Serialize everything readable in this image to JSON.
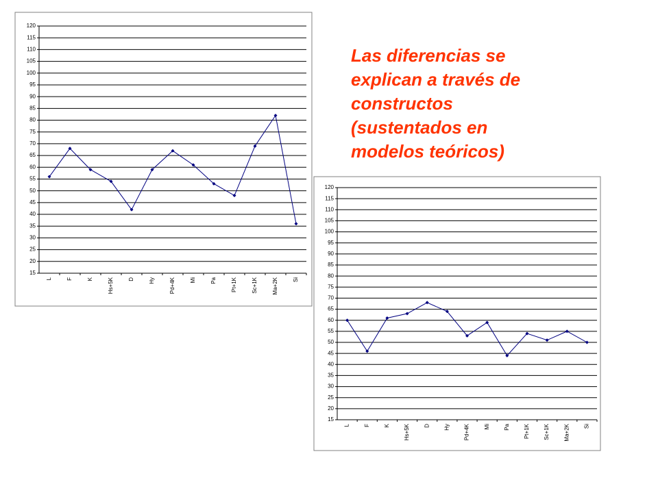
{
  "chart_data": [
    {
      "type": "line",
      "categories": [
        "L",
        "F",
        "K",
        "Hs+5K",
        "D",
        "Hy",
        "Pd+4K",
        "Mi",
        "Pa",
        "Pt+1K",
        "Sc+1K",
        "Ma+2K",
        "Si"
      ],
      "values": [
        56,
        68,
        59,
        54,
        42,
        59,
        67,
        61,
        53,
        48,
        69,
        82,
        36
      ],
      "color": "#000080",
      "ylim": [
        15,
        120
      ],
      "yticks": [
        15,
        20,
        25,
        30,
        35,
        40,
        45,
        50,
        55,
        60,
        65,
        70,
        75,
        80,
        85,
        90,
        95,
        100,
        105,
        110,
        115,
        120
      ],
      "grid": true
    },
    {
      "type": "line",
      "categories": [
        "L",
        "F",
        "K",
        "Hs+5K",
        "D",
        "Hy",
        "Pd+4K",
        "Mi",
        "Pa",
        "Pt+1K",
        "Sc+1K",
        "Ma+2K",
        "Si"
      ],
      "values": [
        60,
        46,
        61,
        63,
        68,
        64,
        53,
        59,
        44,
        54,
        51,
        55,
        50
      ],
      "color": "#000080",
      "ylim": [
        15,
        120
      ],
      "yticks": [
        15,
        20,
        25,
        30,
        35,
        40,
        45,
        50,
        55,
        60,
        65,
        70,
        75,
        80,
        85,
        90,
        95,
        100,
        105,
        110,
        115,
        120
      ],
      "grid": true
    }
  ],
  "note": [
    "Las diferencias se",
    "explican a través de",
    "constructos",
    "(sustentados en",
    "modelos teóricos)"
  ]
}
